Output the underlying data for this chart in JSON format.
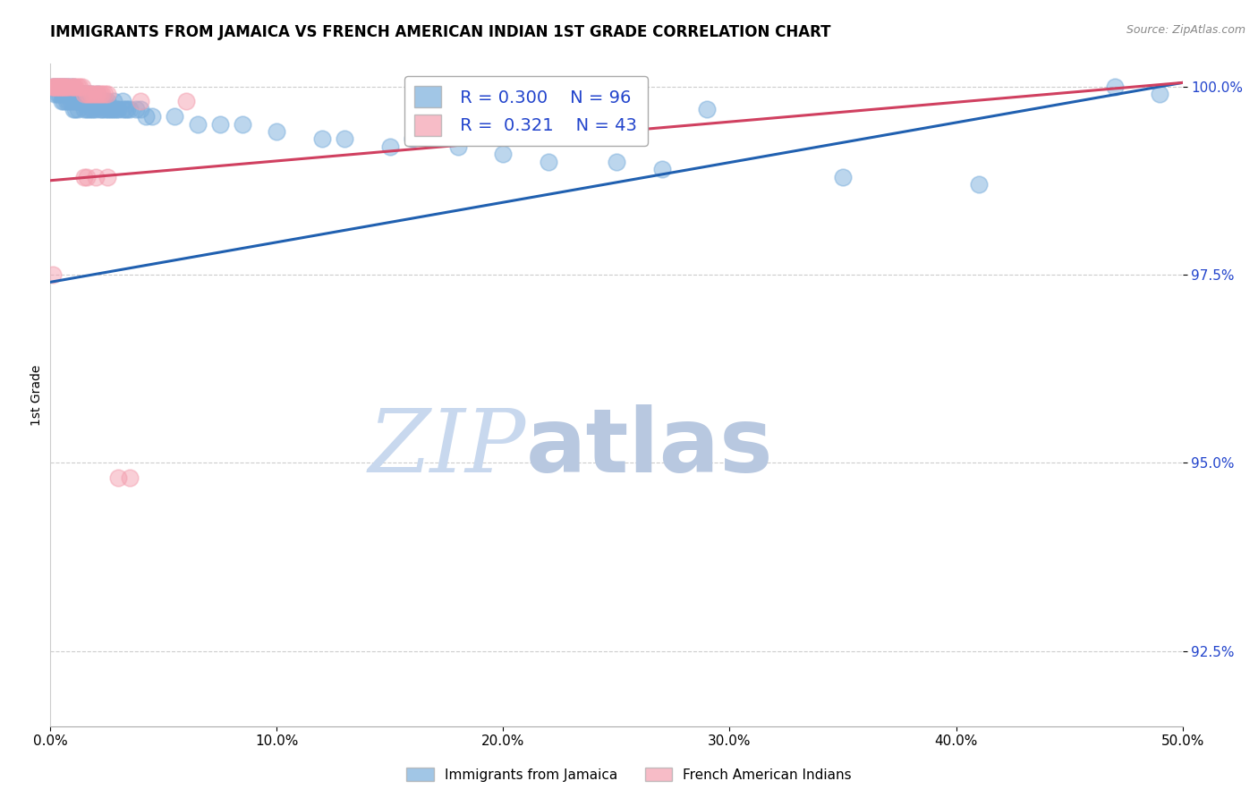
{
  "title": "IMMIGRANTS FROM JAMAICA VS FRENCH AMERICAN INDIAN 1ST GRADE CORRELATION CHART",
  "source": "Source: ZipAtlas.com",
  "ylabel": "1st Grade",
  "xlim": [
    0.0,
    0.5
  ],
  "ylim": [
    0.915,
    1.003
  ],
  "xtick_labels": [
    "0.0%",
    "10.0%",
    "20.0%",
    "30.0%",
    "40.0%",
    "50.0%"
  ],
  "xtick_vals": [
    0.0,
    0.1,
    0.2,
    0.3,
    0.4,
    0.5
  ],
  "ytick_labels": [
    "92.5%",
    "95.0%",
    "97.5%",
    "100.0%"
  ],
  "ytick_vals": [
    0.925,
    0.95,
    0.975,
    1.0
  ],
  "grid_color": "#cccccc",
  "blue_color": "#7aaedc",
  "pink_color": "#f4a0b0",
  "trendline_blue": "#2060b0",
  "trendline_pink": "#d04060",
  "legend_R_blue": "0.300",
  "legend_N_blue": "96",
  "legend_R_pink": "0.321",
  "legend_N_pink": "43",
  "watermark_zip": "ZIP",
  "watermark_atlas": "atlas",
  "watermark_color_zip": "#c8d8ee",
  "watermark_color_atlas": "#b8c8e0",
  "blue_points": [
    [
      0.001,
      1.0
    ],
    [
      0.002,
      1.0
    ],
    [
      0.002,
      0.999
    ],
    [
      0.003,
      1.0
    ],
    [
      0.003,
      0.999
    ],
    [
      0.004,
      1.0
    ],
    [
      0.004,
      0.999
    ],
    [
      0.005,
      1.0
    ],
    [
      0.005,
      0.999
    ],
    [
      0.005,
      0.998
    ],
    [
      0.006,
      1.0
    ],
    [
      0.006,
      0.999
    ],
    [
      0.006,
      0.998
    ],
    [
      0.007,
      1.0
    ],
    [
      0.007,
      0.999
    ],
    [
      0.007,
      0.998
    ],
    [
      0.008,
      1.0
    ],
    [
      0.008,
      0.999
    ],
    [
      0.008,
      0.998
    ],
    [
      0.009,
      1.0
    ],
    [
      0.009,
      0.999
    ],
    [
      0.009,
      0.998
    ],
    [
      0.01,
      1.0
    ],
    [
      0.01,
      0.999
    ],
    [
      0.01,
      0.998
    ],
    [
      0.01,
      0.997
    ],
    [
      0.011,
      0.999
    ],
    [
      0.011,
      0.998
    ],
    [
      0.011,
      0.997
    ],
    [
      0.012,
      0.999
    ],
    [
      0.012,
      0.998
    ],
    [
      0.012,
      0.997
    ],
    [
      0.013,
      0.999
    ],
    [
      0.013,
      0.998
    ],
    [
      0.014,
      0.999
    ],
    [
      0.014,
      0.998
    ],
    [
      0.015,
      0.999
    ],
    [
      0.015,
      0.998
    ],
    [
      0.015,
      0.997
    ],
    [
      0.016,
      0.999
    ],
    [
      0.016,
      0.998
    ],
    [
      0.016,
      0.997
    ],
    [
      0.017,
      0.999
    ],
    [
      0.017,
      0.998
    ],
    [
      0.017,
      0.997
    ],
    [
      0.018,
      0.999
    ],
    [
      0.018,
      0.998
    ],
    [
      0.018,
      0.997
    ],
    [
      0.019,
      0.998
    ],
    [
      0.019,
      0.997
    ],
    [
      0.02,
      0.998
    ],
    [
      0.02,
      0.997
    ],
    [
      0.021,
      0.999
    ],
    [
      0.021,
      0.998
    ],
    [
      0.022,
      0.998
    ],
    [
      0.022,
      0.997
    ],
    [
      0.023,
      0.998
    ],
    [
      0.023,
      0.997
    ],
    [
      0.024,
      0.998
    ],
    [
      0.024,
      0.997
    ],
    [
      0.025,
      0.998
    ],
    [
      0.025,
      0.997
    ],
    [
      0.026,
      0.997
    ],
    [
      0.027,
      0.997
    ],
    [
      0.028,
      0.998
    ],
    [
      0.028,
      0.997
    ],
    [
      0.029,
      0.997
    ],
    [
      0.03,
      0.997
    ],
    [
      0.032,
      0.998
    ],
    [
      0.032,
      0.997
    ],
    [
      0.033,
      0.997
    ],
    [
      0.034,
      0.997
    ],
    [
      0.035,
      0.997
    ],
    [
      0.038,
      0.997
    ],
    [
      0.04,
      0.997
    ],
    [
      0.042,
      0.996
    ],
    [
      0.045,
      0.996
    ],
    [
      0.055,
      0.996
    ],
    [
      0.065,
      0.995
    ],
    [
      0.075,
      0.995
    ],
    [
      0.085,
      0.995
    ],
    [
      0.1,
      0.994
    ],
    [
      0.12,
      0.993
    ],
    [
      0.13,
      0.993
    ],
    [
      0.15,
      0.992
    ],
    [
      0.16,
      0.993
    ],
    [
      0.18,
      0.992
    ],
    [
      0.2,
      0.991
    ],
    [
      0.22,
      0.99
    ],
    [
      0.25,
      0.99
    ],
    [
      0.27,
      0.989
    ],
    [
      0.29,
      0.997
    ],
    [
      0.35,
      0.988
    ],
    [
      0.41,
      0.987
    ],
    [
      0.47,
      1.0
    ],
    [
      0.49,
      0.999
    ]
  ],
  "pink_points": [
    [
      0.001,
      1.0
    ],
    [
      0.001,
      1.0
    ],
    [
      0.002,
      1.0
    ],
    [
      0.002,
      1.0
    ],
    [
      0.003,
      1.0
    ],
    [
      0.003,
      1.0
    ],
    [
      0.004,
      1.0
    ],
    [
      0.004,
      1.0
    ],
    [
      0.005,
      1.0
    ],
    [
      0.005,
      1.0
    ],
    [
      0.006,
      1.0
    ],
    [
      0.006,
      1.0
    ],
    [
      0.007,
      1.0
    ],
    [
      0.007,
      1.0
    ],
    [
      0.008,
      1.0
    ],
    [
      0.009,
      1.0
    ],
    [
      0.01,
      1.0
    ],
    [
      0.01,
      1.0
    ],
    [
      0.011,
      1.0
    ],
    [
      0.012,
      1.0
    ],
    [
      0.013,
      1.0
    ],
    [
      0.014,
      1.0
    ],
    [
      0.015,
      0.999
    ],
    [
      0.016,
      0.999
    ],
    [
      0.017,
      0.999
    ],
    [
      0.018,
      0.999
    ],
    [
      0.019,
      0.999
    ],
    [
      0.02,
      0.999
    ],
    [
      0.021,
      0.999
    ],
    [
      0.022,
      0.999
    ],
    [
      0.023,
      0.999
    ],
    [
      0.024,
      0.999
    ],
    [
      0.025,
      0.999
    ],
    [
      0.04,
      0.998
    ],
    [
      0.001,
      0.975
    ],
    [
      0.015,
      0.988
    ],
    [
      0.016,
      0.988
    ],
    [
      0.02,
      0.988
    ],
    [
      0.025,
      0.988
    ],
    [
      0.03,
      0.948
    ],
    [
      0.035,
      0.948
    ],
    [
      0.06,
      0.998
    ],
    [
      0.2,
      1.0
    ]
  ],
  "blue_trendline_x": [
    0.0,
    0.5
  ],
  "blue_trendline_y": [
    0.974,
    1.0005
  ],
  "pink_trendline_x": [
    0.0,
    0.5
  ],
  "pink_trendline_y": [
    0.9875,
    1.0005
  ]
}
